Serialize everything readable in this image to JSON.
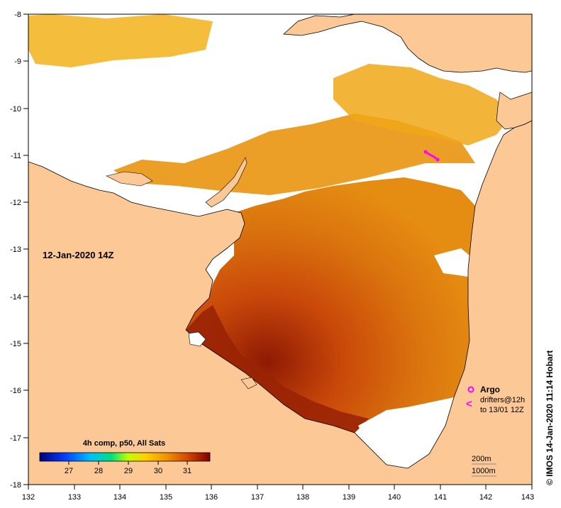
{
  "map": {
    "date_label": "12-Jan-2020 14Z",
    "credit": "© IMOS 14-Jan-2020 11:14 Hobart",
    "x_ticks": [
      "132",
      "133",
      "134",
      "135",
      "136",
      "137",
      "138",
      "139",
      "140",
      "141",
      "142",
      "143"
    ],
    "y_ticks": [
      "-8",
      "-9",
      "-10",
      "-11",
      "-12",
      "-13",
      "-14",
      "-15",
      "-16",
      "-17",
      "-18"
    ],
    "colorbar": {
      "title": "4h comp, p50, All Sats",
      "ticks": [
        "27",
        "28",
        "29",
        "30",
        "31"
      ]
    },
    "legend": {
      "argo_label": "Argo",
      "drifters_line1": "drifters@12h",
      "drifters_line2": "to 13/01 12Z",
      "depth_200": "200m",
      "depth_1000": "1000m"
    },
    "colors": {
      "land": "#FCC896",
      "sea_hot": "#C03A0A",
      "sea_warm": "#E07B0C",
      "sea_mild": "#F0A818",
      "markers": "#FF00FF"
    }
  }
}
